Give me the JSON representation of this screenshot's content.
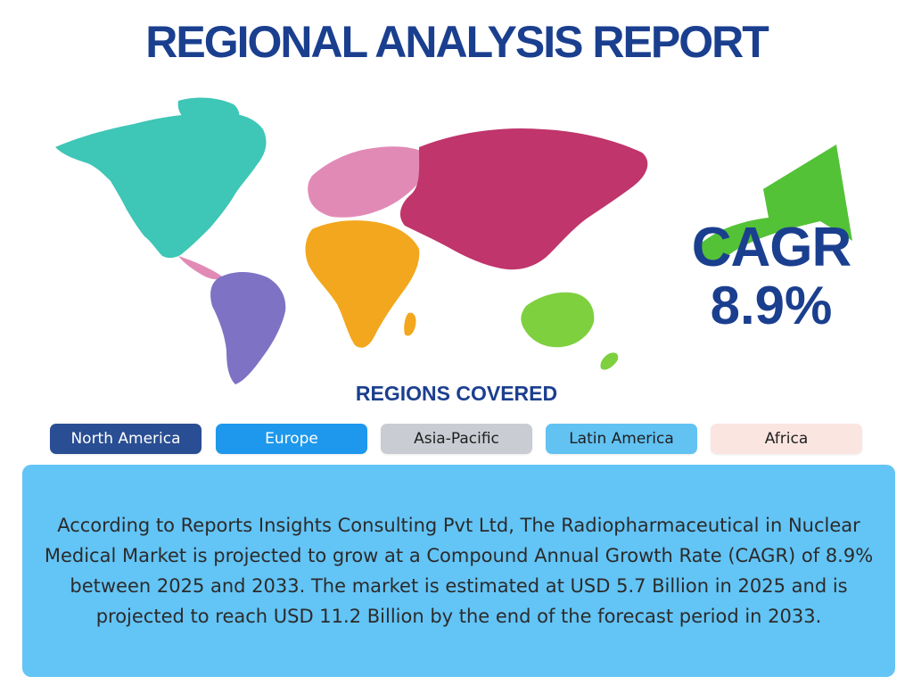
{
  "header": {
    "title": "REGIONAL ANALYSIS REPORT"
  },
  "map": {
    "colors": {
      "north_america": "#3ec6b6",
      "latin_america": "#7e72c4",
      "europe": "#e28ab6",
      "asia": "#c0356b",
      "africa": "#f3a71e",
      "oceania": "#7ed03f"
    }
  },
  "cagr": {
    "label": "CAGR",
    "value": "8.9%",
    "arrow_color": "#53c237"
  },
  "regions": {
    "heading": "REGIONS COVERED",
    "items": [
      {
        "label": "North America",
        "bg": "#2a4e93",
        "fg": "#ffffff"
      },
      {
        "label": "Europe",
        "bg": "#1d98ec",
        "fg": "#ffffff"
      },
      {
        "label": "Asia-Pacific",
        "bg": "#c9ccd3",
        "fg": "#1f1f1f"
      },
      {
        "label": "Latin America",
        "bg": "#62c2f2",
        "fg": "#1f1f1f"
      },
      {
        "label": "Africa",
        "bg": "#fbe5e0",
        "fg": "#1f1f1f"
      }
    ]
  },
  "summary": {
    "text": "According to Reports Insights Consulting Pvt Ltd, The Radiopharmaceutical in Nuclear Medical Market is projected to grow at a Compound Annual Growth Rate (CAGR) of 8.9% between 2025 and 2033. The market is estimated at USD 5.7 Billion in 2025 and is projected to reach USD 11.2 Billion by the end of the forecast period in 2033.",
    "bg": "#63c4f6"
  }
}
